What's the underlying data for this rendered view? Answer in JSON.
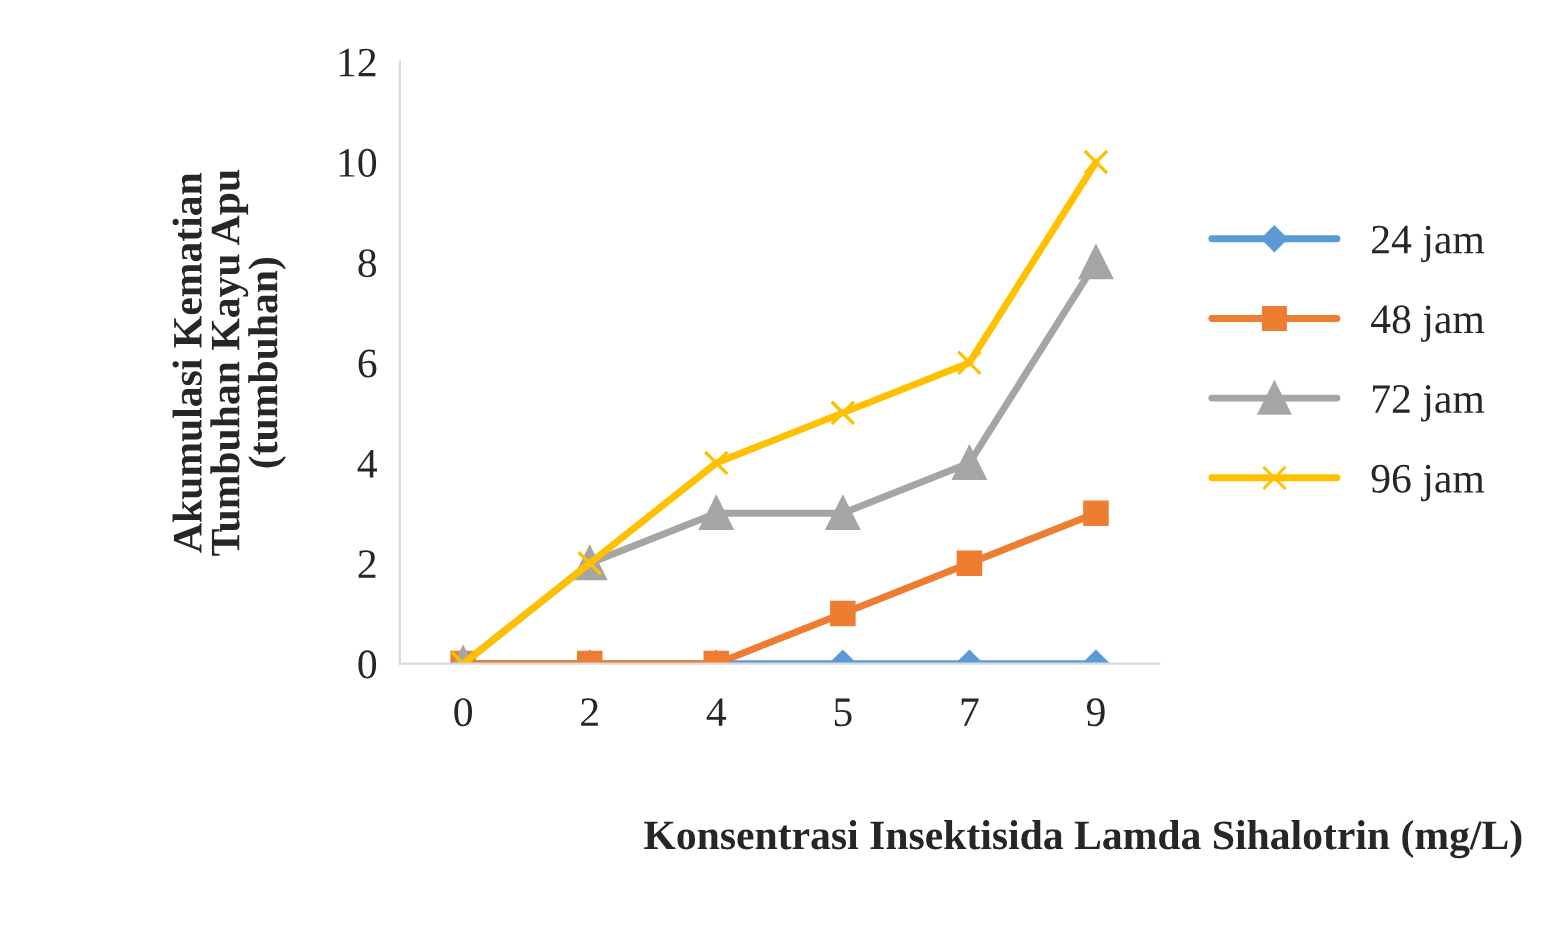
{
  "chart_data": {
    "type": "line",
    "xlabel": "Konsentrasi Insektisida Lamda Sihalotrin (mg/L)",
    "ylabel": "Akumulasi Kematian\nTumbuhan Kayu Apu\n(tumbuhan)",
    "categories": [
      "0",
      "2",
      "4",
      "5",
      "7",
      "9"
    ],
    "series": [
      {
        "name": "24 jam",
        "color": "#5b9bd5",
        "marker": "diamond",
        "values": [
          0,
          0,
          0,
          0,
          0,
          0
        ]
      },
      {
        "name": "48 jam",
        "color": "#ed7d31",
        "marker": "square",
        "values": [
          0,
          0,
          0,
          1,
          2,
          3
        ]
      },
      {
        "name": "72 jam",
        "color": "#a5a5a5",
        "marker": "triangle",
        "values": [
          0,
          2,
          3,
          3,
          4,
          8
        ]
      },
      {
        "name": "96 jam",
        "color": "#ffc000",
        "marker": "cross",
        "values": [
          0,
          2,
          4,
          5,
          6,
          10
        ]
      }
    ],
    "ylim": [
      0,
      12
    ],
    "yticks": [
      0,
      2,
      4,
      6,
      8,
      10,
      12
    ],
    "grid": false,
    "legend": "right",
    "line_style": "solid"
  }
}
